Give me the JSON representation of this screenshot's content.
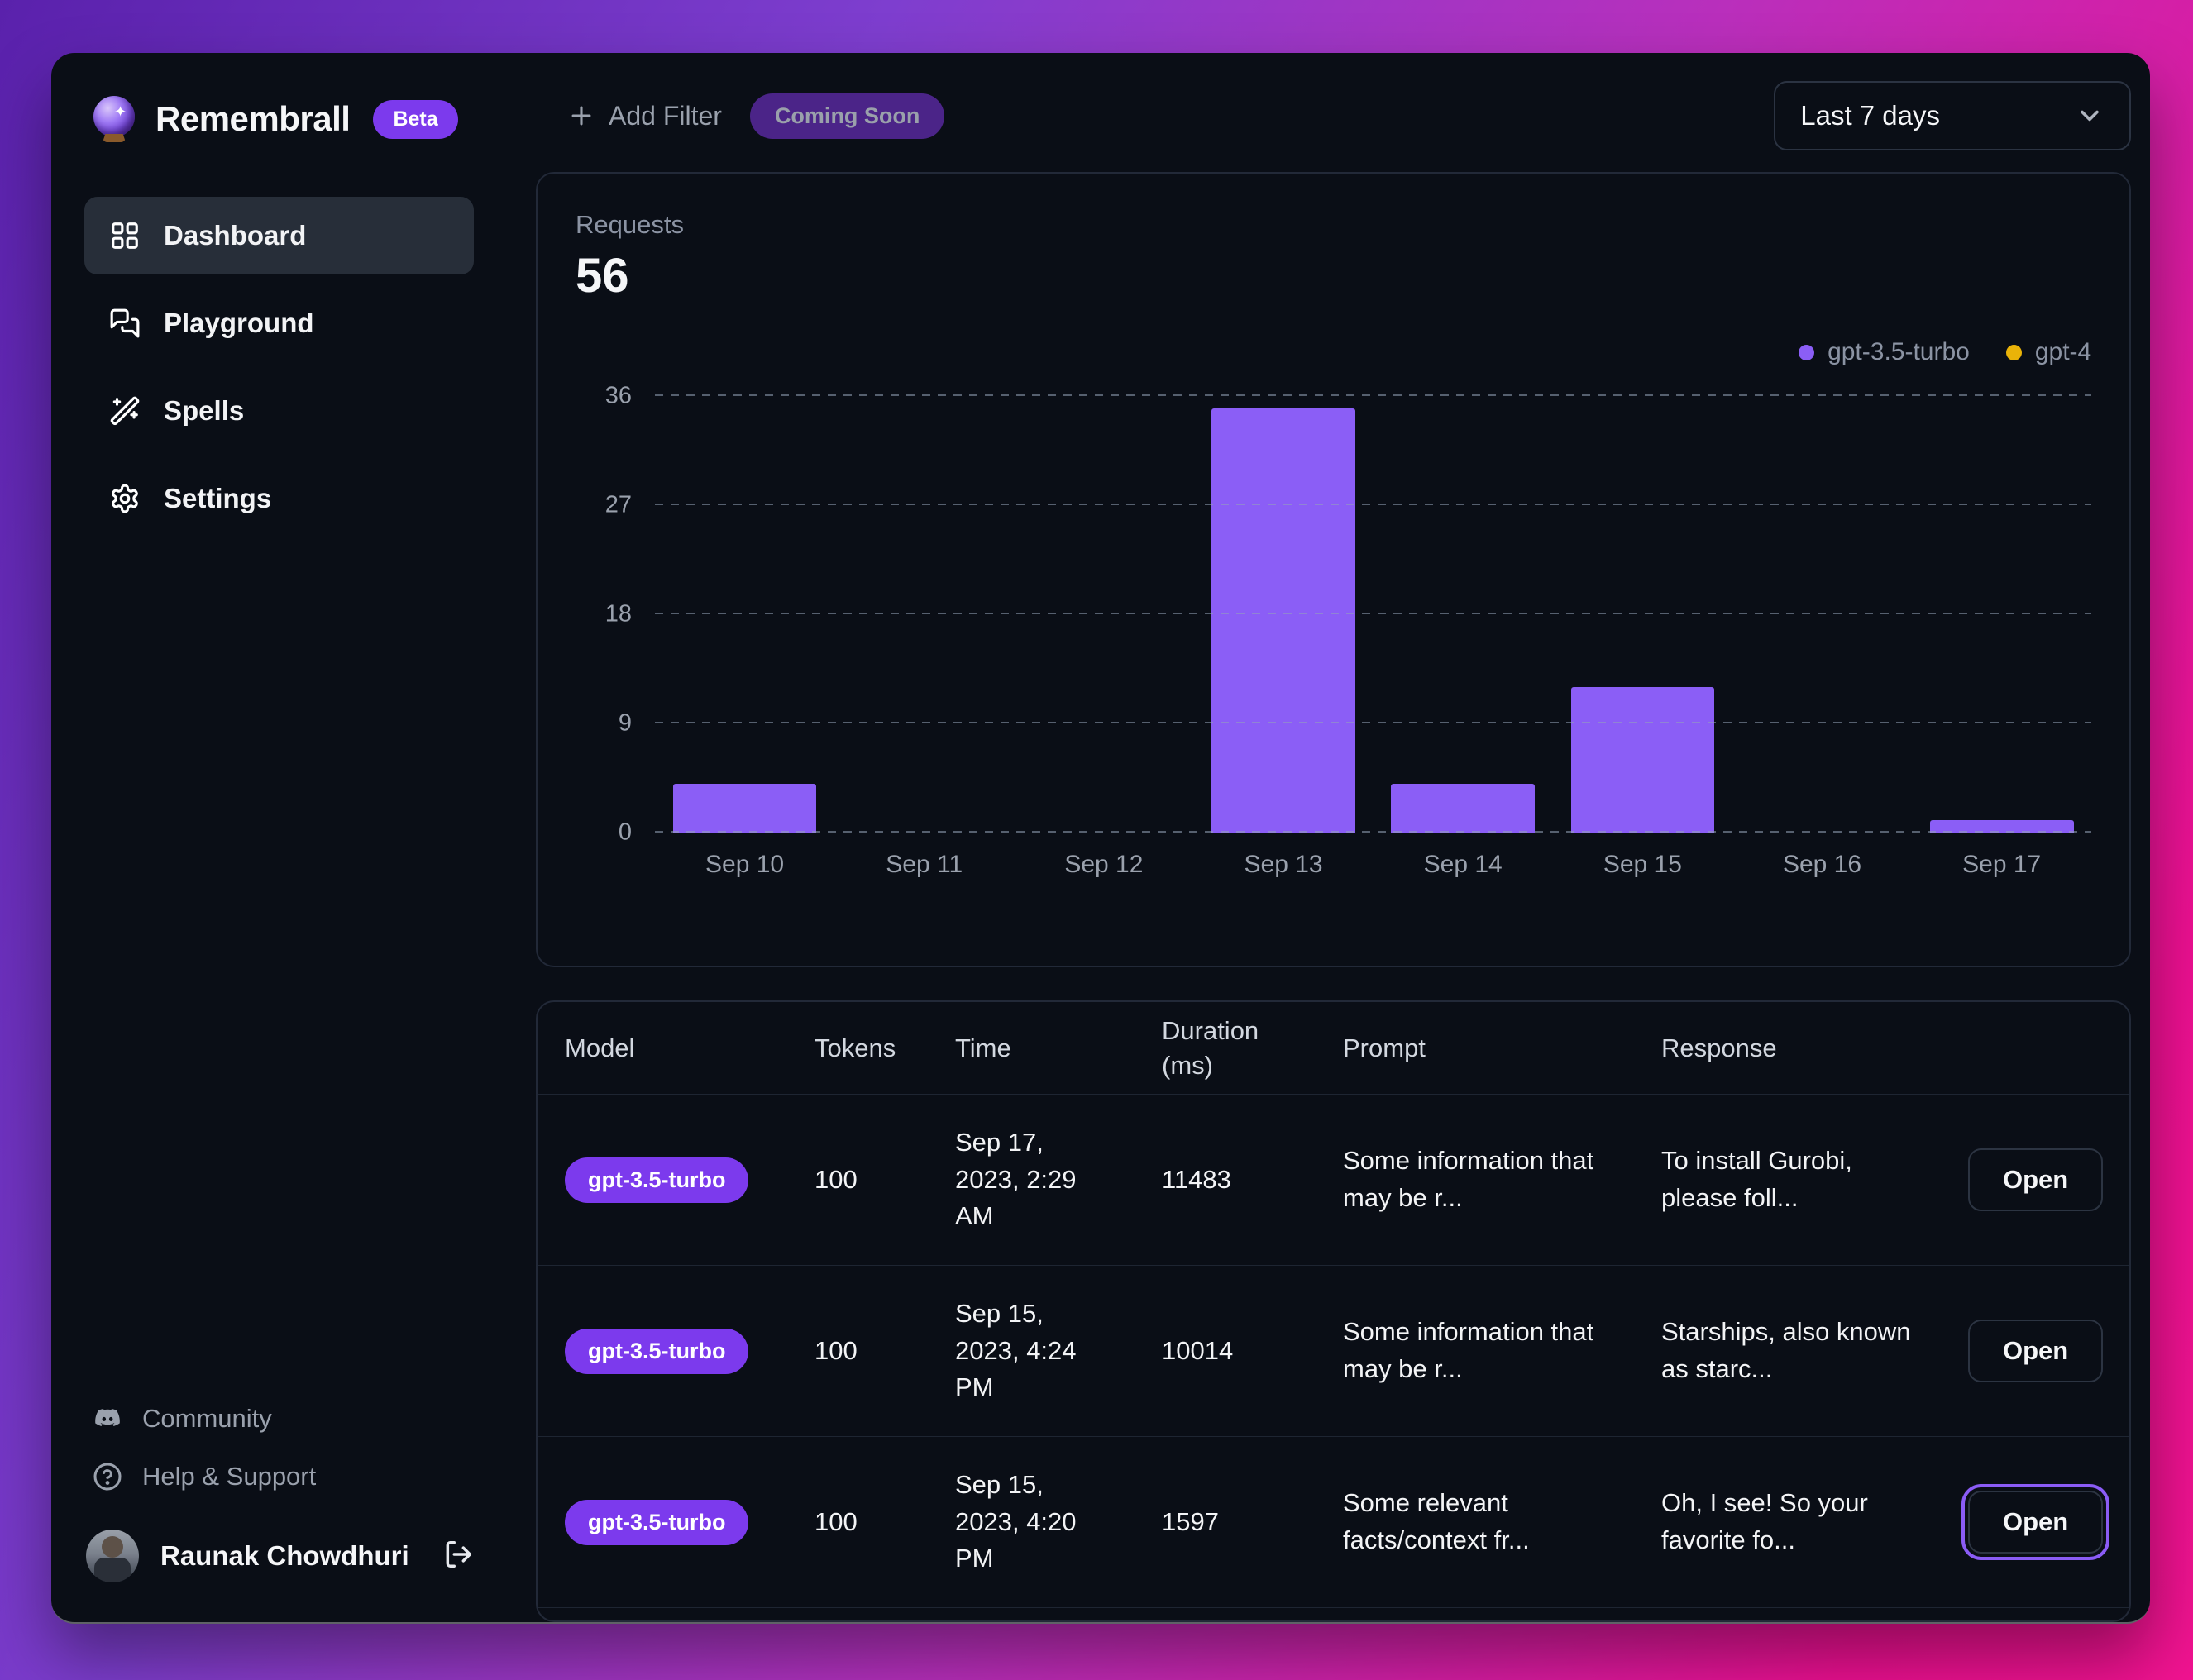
{
  "app": {
    "name": "Remembrall",
    "badge": "Beta"
  },
  "colors": {
    "accent": "#8b5cf6",
    "badge_purple": "#7c3aed",
    "gpt4_yellow": "#eab308",
    "window_bg": "#0a0e16"
  },
  "sidebar": {
    "items": [
      {
        "label": "Dashboard",
        "active": true
      },
      {
        "label": "Playground",
        "active": false
      },
      {
        "label": "Spells",
        "active": false
      },
      {
        "label": "Settings",
        "active": false
      }
    ],
    "footer_items": [
      {
        "label": "Community"
      },
      {
        "label": "Help & Support"
      }
    ],
    "user": {
      "name": "Raunak Chowdhuri"
    }
  },
  "topbar": {
    "add_filter": "Add Filter",
    "coming_soon": "Coming Soon",
    "date_range": "Last 7 days"
  },
  "chart_data": {
    "type": "bar",
    "title": "Requests",
    "total": "56",
    "categories": [
      "Sep 10",
      "Sep 11",
      "Sep 12",
      "Sep 13",
      "Sep 14",
      "Sep 15",
      "Sep 16",
      "Sep 17"
    ],
    "series": [
      {
        "name": "gpt-3.5-turbo",
        "color": "#8b5ef6",
        "values": [
          4,
          0,
          0,
          35,
          4,
          12,
          0,
          1
        ]
      },
      {
        "name": "gpt-4",
        "color": "#eab308",
        "values": [
          0,
          0,
          0,
          0,
          0,
          0,
          0,
          0
        ]
      }
    ],
    "yticks": [
      0,
      9,
      18,
      27,
      36
    ],
    "ylim": [
      0,
      36
    ],
    "grid": "dashed-horizontal",
    "legend_position": "top-right"
  },
  "table": {
    "columns": [
      "Model",
      "Tokens",
      "Time",
      "Duration (ms)",
      "Prompt",
      "Response"
    ],
    "open_label": "Open",
    "rows": [
      {
        "model": "gpt-3.5-turbo",
        "tokens": "100",
        "time": "Sep 17, 2023, 2:29 AM",
        "duration": "11483",
        "prompt": "Some information that may be r...",
        "response": "To install Gurobi, please foll...",
        "open_highlighted": false
      },
      {
        "model": "gpt-3.5-turbo",
        "tokens": "100",
        "time": "Sep 15, 2023, 4:24 PM",
        "duration": "10014",
        "prompt": "Some information that may be r...",
        "response": "Starships, also known as starc...",
        "open_highlighted": false
      },
      {
        "model": "gpt-3.5-turbo",
        "tokens": "100",
        "time": "Sep 15, 2023, 4:20 PM",
        "duration": "1597",
        "prompt": "Some relevant facts/context fr...",
        "response": "Oh, I see! So your favorite fo...",
        "open_highlighted": true
      }
    ]
  }
}
